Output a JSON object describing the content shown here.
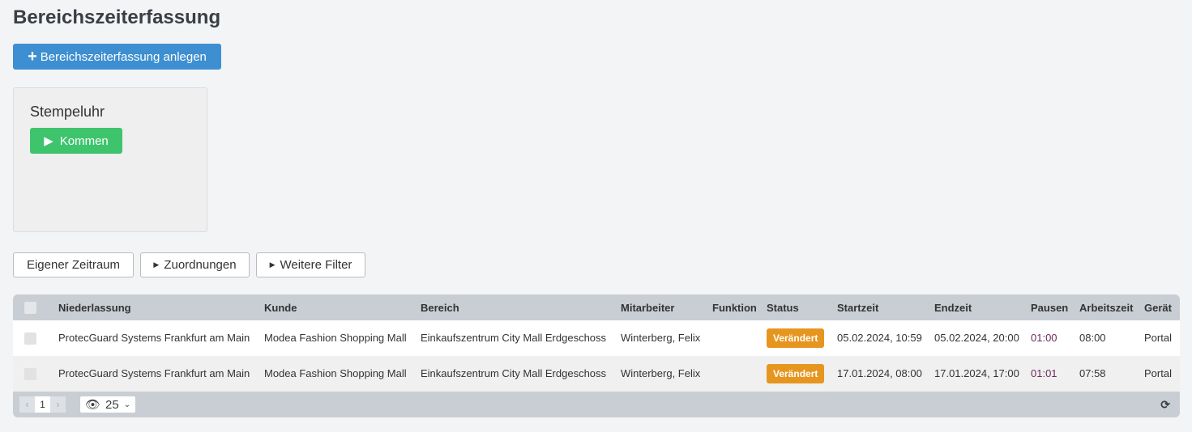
{
  "page": {
    "title": "Bereichszeiterfassung",
    "create_button": "Bereichszeiterfassung anlegen"
  },
  "clock": {
    "title": "Stempeluhr",
    "button": "Kommen"
  },
  "filters": [
    "Eigener Zeitraum",
    "Zuordnungen",
    "Weitere Filter"
  ],
  "table": {
    "columns": [
      "Niederlassung",
      "Kunde",
      "Bereich",
      "Mitarbeiter",
      "Funktion",
      "Status",
      "Startzeit",
      "Endzeit",
      "Pausen",
      "Arbeitszeit",
      "Gerät"
    ],
    "rows": [
      [
        "ProtecGuard Systems Frankfurt am Main",
        "Modea Fashion Shopping Mall",
        "Einkaufszentrum City Mall Erdgeschoss",
        "Winterberg, Felix",
        "",
        "Verändert",
        "05.02.2024, 10:59",
        "05.02.2024, 20:00",
        "01:00",
        "08:00",
        "Portal"
      ],
      [
        "ProtecGuard Systems Frankfurt am Main",
        "Modea Fashion Shopping Mall",
        "Einkaufszentrum City Mall Erdgeschoss",
        "Winterberg, Felix",
        "",
        "Verändert",
        "17.01.2024, 08:00",
        "17.01.2024, 17:00",
        "01:01",
        "07:58",
        "Portal"
      ]
    ],
    "pagination": {
      "prev": "‹",
      "page": "1",
      "next": "›",
      "page_size": "25"
    },
    "colors": {
      "badge": "#e6961f",
      "header": "#c9ced4"
    }
  }
}
